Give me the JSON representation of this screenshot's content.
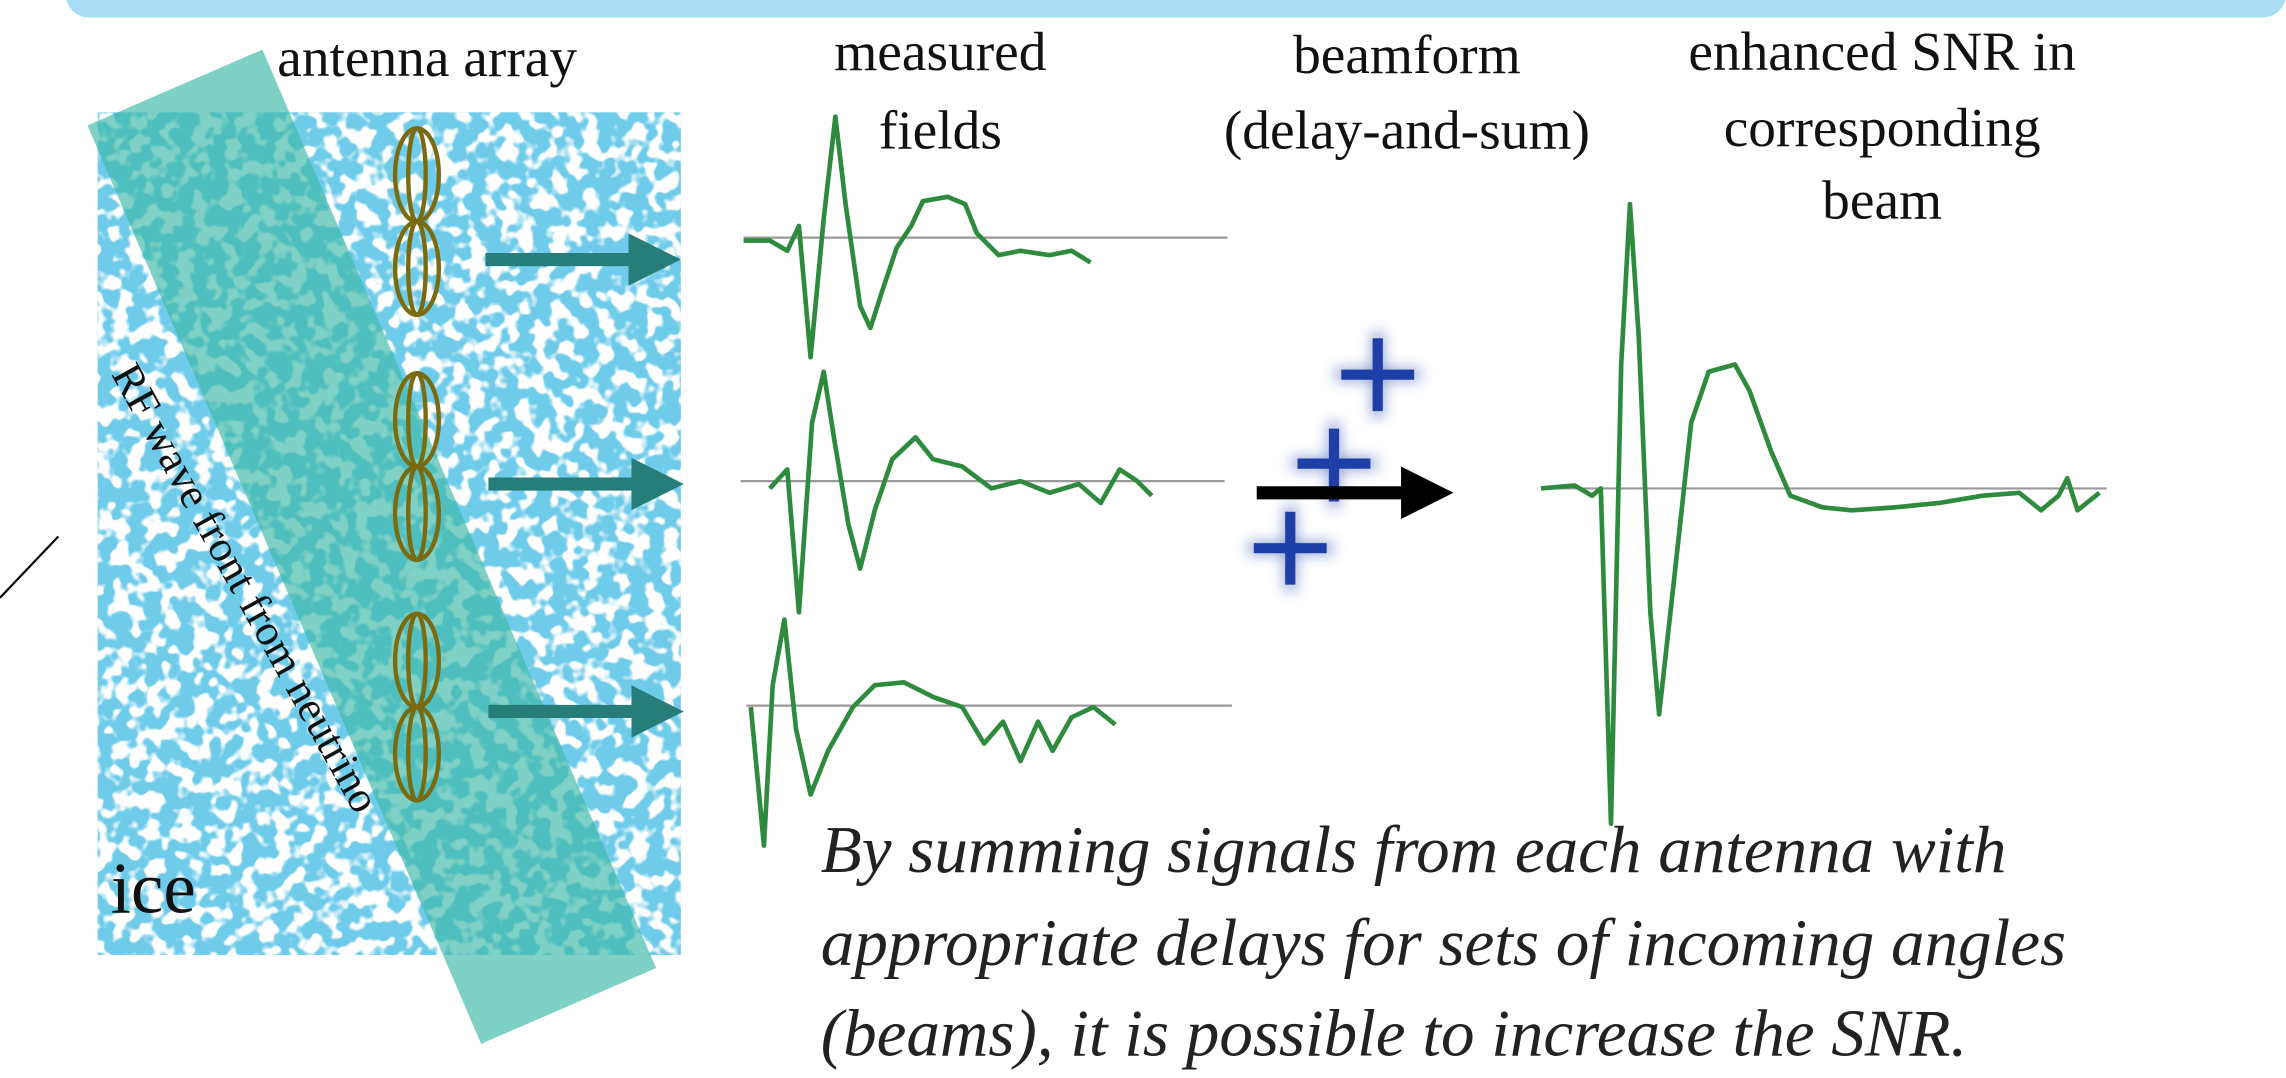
{
  "labels": {
    "antenna_array": "antenna array",
    "measured_fields": [
      "measured",
      "fields"
    ],
    "beamform": [
      "beamform",
      "(delay-and-sum)"
    ],
    "enhanced": [
      "enhanced SNR in",
      "corresponding",
      "beam"
    ],
    "wave_front": "RF wave front from neutrino",
    "ice": "ice"
  },
  "caption": [
    "By summing signals from each antenna with",
    "appropriate delays for sets of incoming angles",
    "(beams), it is possible to increase the SNR."
  ]
}
